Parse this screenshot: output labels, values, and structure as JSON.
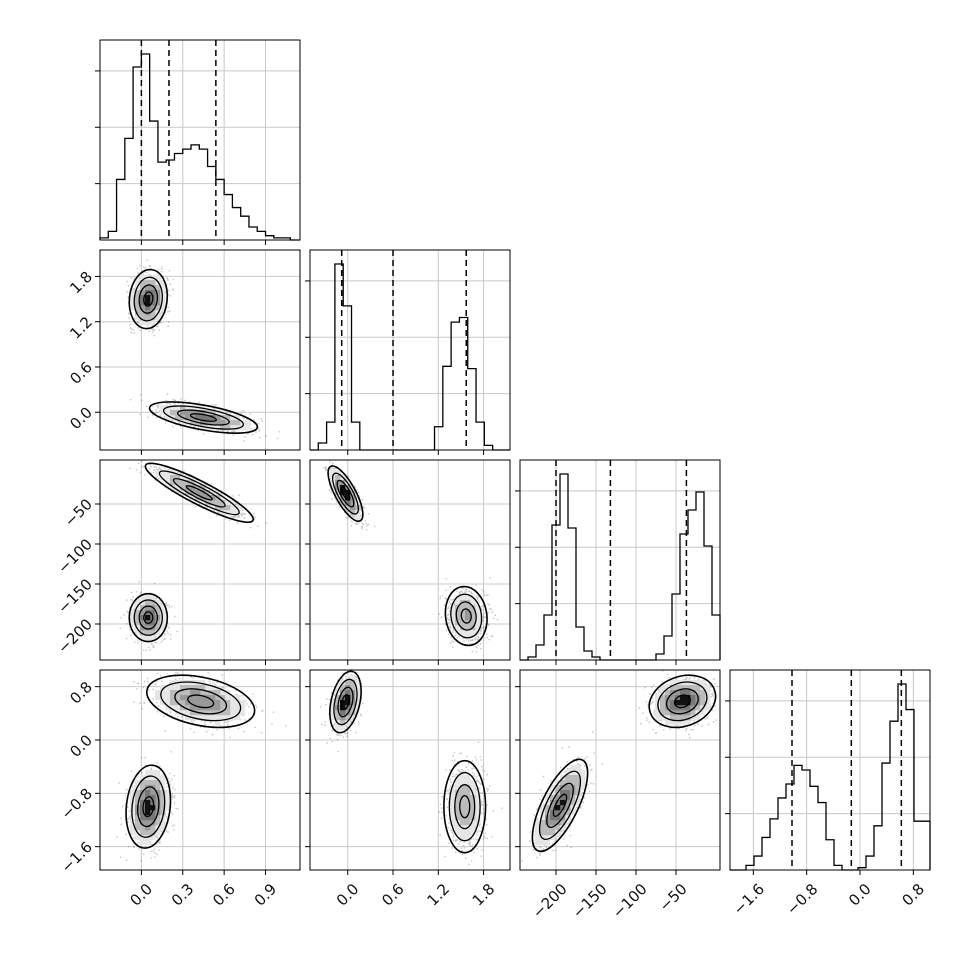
{
  "chart_data": {
    "type": "corner",
    "title": "",
    "grid": true,
    "dimensions": [
      {
        "name": "",
        "range": [
          -0.3,
          1.15
        ],
        "ticks": [
          0.0,
          0.3,
          0.6,
          0.9
        ],
        "tick_labels": [
          "0.0",
          "0.3",
          "0.6",
          "0.9"
        ],
        "quantiles": [
          0.0,
          0.2,
          0.54
        ]
      },
      {
        "name": "",
        "range": [
          -0.5,
          2.15
        ],
        "ticks": [
          0.0,
          0.6,
          1.2,
          1.8
        ],
        "tick_labels": [
          "0.0",
          "0.6",
          "1.2",
          "1.8"
        ],
        "quantiles": [
          -0.08,
          0.6,
          1.57
        ]
      },
      {
        "name": "",
        "range": [
          -245,
          5
        ],
        "ticks": [
          -200,
          -150,
          -100,
          -50
        ],
        "tick_labels": [
          "−200",
          "−150",
          "−100",
          "−50"
        ],
        "quantiles": [
          -200,
          -132,
          -37
        ]
      },
      {
        "name": "",
        "range": [
          -1.95,
          1.05
        ],
        "ticks": [
          -1.6,
          -0.8,
          0.0,
          0.8
        ],
        "tick_labels": [
          "−1.6",
          "−0.8",
          "0.0",
          "0.8"
        ],
        "quantiles": [
          -1.02,
          -0.13,
          0.62
        ]
      }
    ],
    "histograms": [
      {
        "dim": 0,
        "edges": [
          -0.3,
          -0.24,
          -0.18,
          -0.12,
          -0.06,
          0.0,
          0.06,
          0.12,
          0.18,
          0.24,
          0.3,
          0.36,
          0.42,
          0.48,
          0.54,
          0.6,
          0.66,
          0.72,
          0.78,
          0.84,
          0.9,
          0.96,
          1.02,
          1.08,
          1.15
        ],
        "counts": [
          1,
          4,
          28,
          47,
          80,
          86,
          55,
          36,
          37,
          40,
          42,
          44,
          42,
          34,
          28,
          21,
          15,
          11,
          6,
          4,
          2,
          1,
          1,
          0
        ]
      },
      {
        "dim": 1,
        "edges": [
          -0.5,
          -0.39,
          -0.28,
          -0.17,
          -0.06,
          0.05,
          0.16,
          0.27,
          0.38,
          0.49,
          0.6,
          0.71,
          0.82,
          0.93,
          1.04,
          1.15,
          1.26,
          1.37,
          1.48,
          1.59,
          1.7,
          1.81,
          1.92,
          2.03,
          2.15
        ],
        "counts": [
          0,
          3,
          12,
          80,
          62,
          12,
          0,
          0,
          0,
          0,
          0,
          0,
          0,
          0,
          0,
          10,
          36,
          55,
          57,
          35,
          12,
          2,
          0,
          0
        ]
      },
      {
        "dim": 2,
        "edges": [
          -245,
          -235,
          -225,
          -215,
          -205,
          -195,
          -185,
          -175,
          -165,
          -155,
          -145,
          -135,
          -125,
          -115,
          -105,
          -95,
          -85,
          -75,
          -65,
          -55,
          -45,
          -35,
          -25,
          -15,
          -5,
          5
        ],
        "counts": [
          0,
          1,
          5,
          15,
          45,
          62,
          44,
          11,
          3,
          1,
          0,
          0,
          0,
          0,
          0,
          0,
          0,
          2,
          8,
          22,
          42,
          50,
          56,
          38,
          15
        ]
      },
      {
        "dim": 3,
        "edges": [
          -1.95,
          -1.83,
          -1.71,
          -1.59,
          -1.47,
          -1.35,
          -1.23,
          -1.11,
          -0.99,
          -0.87,
          -0.75,
          -0.63,
          -0.51,
          -0.39,
          -0.27,
          -0.15,
          -0.03,
          0.09,
          0.21,
          0.33,
          0.45,
          0.57,
          0.69,
          0.81,
          1.05
        ],
        "counts": [
          0,
          0,
          2,
          6,
          14,
          22,
          31,
          37,
          45,
          43,
          36,
          29,
          13,
          2,
          0,
          0,
          1,
          6,
          19,
          46,
          64,
          80,
          69,
          21
        ]
      }
    ],
    "scatter_2d": [
      {
        "x_dim": 0,
        "y_dim": 1,
        "modes": [
          {
            "cx": 0.05,
            "cy": 1.5,
            "sx": 0.06,
            "sy": 0.17,
            "rho": 0.1,
            "w": 0.5
          },
          {
            "cx": 0.45,
            "cy": -0.07,
            "sx": 0.17,
            "sy": 0.09,
            "rho": -0.6,
            "w": 0.5
          }
        ]
      },
      {
        "x_dim": 0,
        "y_dim": 2,
        "modes": [
          {
            "cx": 0.05,
            "cy": -192,
            "sx": 0.06,
            "sy": 13,
            "rho": 0.0,
            "w": 0.5
          },
          {
            "cx": 0.42,
            "cy": -36,
            "sx": 0.17,
            "sy": 16,
            "rho": -0.9,
            "w": 0.5
          }
        ]
      },
      {
        "x_dim": 1,
        "y_dim": 2,
        "modes": [
          {
            "cx": -0.03,
            "cy": -37,
            "sx": 0.1,
            "sy": 15,
            "rho": -0.75,
            "w": 0.5
          },
          {
            "cx": 1.57,
            "cy": -190,
            "sx": 0.12,
            "sy": 16,
            "rho": -0.1,
            "w": 0.5
          }
        ]
      },
      {
        "x_dim": 0,
        "y_dim": 3,
        "modes": [
          {
            "cx": 0.05,
            "cy": -1.0,
            "sx": 0.07,
            "sy": 0.27,
            "rho": 0.15,
            "w": 0.5
          },
          {
            "cx": 0.43,
            "cy": 0.58,
            "sx": 0.17,
            "sy": 0.17,
            "rho": -0.35,
            "w": 0.5
          }
        ]
      },
      {
        "x_dim": 1,
        "y_dim": 3,
        "modes": [
          {
            "cx": -0.03,
            "cy": 0.57,
            "sx": 0.09,
            "sy": 0.2,
            "rho": 0.35,
            "w": 0.5
          },
          {
            "cx": 1.55,
            "cy": -1.0,
            "sx": 0.12,
            "sy": 0.3,
            "rho": 0.0,
            "w": 0.5
          }
        ]
      },
      {
        "x_dim": 2,
        "y_dim": 3,
        "modes": [
          {
            "cx": -195,
            "cy": -0.98,
            "sx": 15,
            "sy": 0.3,
            "rho": 0.7,
            "w": 0.5
          },
          {
            "cx": -42,
            "cy": 0.58,
            "sx": 18,
            "sy": 0.17,
            "rho": 0.2,
            "w": 0.5
          }
        ]
      }
    ],
    "contour_levels": [
      0.4,
      0.75,
      0.95
    ],
    "colors": {
      "line": "#000000",
      "scatter": "#555555",
      "grid": "#c8c8c8",
      "fill_dark": "#111111",
      "fill_mid": "#777777",
      "fill_light": "#bbbbbb"
    }
  }
}
